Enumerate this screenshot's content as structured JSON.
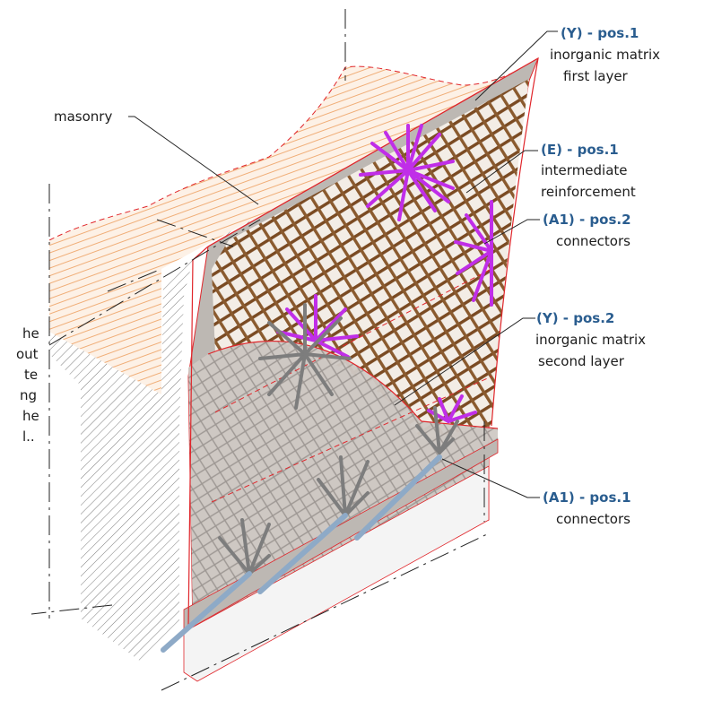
{
  "labels": {
    "masonry": "masonry",
    "y_pos1": {
      "code": "(Y) - pos.1",
      "line1": "inorganic matrix",
      "line2": "first layer"
    },
    "e_pos1": {
      "code": "(E) - pos.1",
      "line1": "intermediate",
      "line2": "reinforcement"
    },
    "a1_pos2": {
      "code": "(A1) - pos.2",
      "line1": "connectors"
    },
    "y_pos2": {
      "code": "(Y) - pos.2",
      "line1": "inorganic matrix",
      "line2": "second layer"
    },
    "a1_pos1": {
      "code": "(A1) - pos.1",
      "line1": "connectors"
    }
  },
  "cropped_text": [
    "he",
    "out",
    "te",
    "ng",
    "he",
    "l.."
  ],
  "colors": {
    "title_blue": "#2a5d8f",
    "mesh_brown": "#7a4a22",
    "connector_magenta": "#c02ee8",
    "connector_grey": "#7d7d7d",
    "masonry_hatch": "#f2b37f",
    "outline_red": "#e0262b"
  }
}
